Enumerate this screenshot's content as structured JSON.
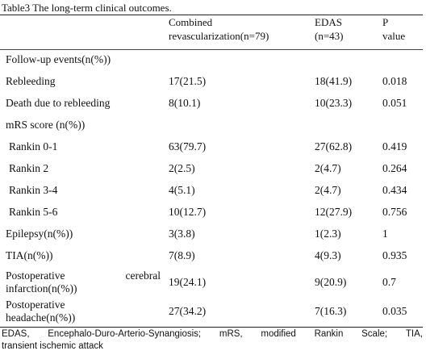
{
  "caption": "Table3 The long-term clinical outcomes.",
  "headers": {
    "group1_line1": "Combined",
    "group1_line2": "revascularization(n=79)",
    "group2_line1": "EDAS",
    "group2_line2": "(n=43)",
    "p_line1": "P",
    "p_line2": "value"
  },
  "rows": [
    {
      "label": "Follow-up events(n(%))",
      "combined": "",
      "edas": "",
      "p": ""
    },
    {
      "label": "Rebleeding",
      "combined": "17(21.5)",
      "edas": "18(41.9)",
      "p": "0.018"
    },
    {
      "label": "Death due to rebleeding",
      "combined": "8(10.1)",
      "edas": "10(23.3)",
      "p": "0.051"
    },
    {
      "label": "mRS score (n(%))",
      "combined": "",
      "edas": "",
      "p": ""
    },
    {
      "label": "Rankin 0-1",
      "combined": "63(79.7)",
      "edas": "27(62.8)",
      "p": "0.419"
    },
    {
      "label": "Rankin 2",
      "combined": "2(2.5)",
      "edas": "2(4.7)",
      "p": "0.264"
    },
    {
      "label": "Rankin 3-4",
      "combined": "4(5.1)",
      "edas": "2(4.7)",
      "p": "0.434"
    },
    {
      "label": "Rankin 5-6",
      "combined": "10(12.7)",
      "edas": "12(27.9)",
      "p": "0.756"
    },
    {
      "label": "Epilepsy(n(%))",
      "combined": "3(3.8)",
      "edas": "1(2.3)",
      "p": "1"
    },
    {
      "label": "TIA(n(%))",
      "combined": "7(8.9)",
      "edas": "4(9.3)",
      "p": "0.935"
    },
    {
      "label_line1_a": "Postoperative",
      "label_line1_b": "cerebral",
      "label_line2": "infarction(n(%))",
      "combined": "19(24.1)",
      "edas": "9(20.9)",
      "p": "0.7"
    },
    {
      "label_line1": "Postoperative",
      "label_line2": "headache(n(%))",
      "combined": "27(34.2)",
      "edas": "7(16.3)",
      "p": "0.035"
    }
  ],
  "footnote": {
    "line1_parts": [
      "EDAS,",
      "Encephalo-Duro-Arterio-Synangiosis;",
      "mRS,",
      "modified",
      "Rankin",
      "Scale;",
      "TIA,"
    ],
    "line2": "transient ischemic attack"
  }
}
